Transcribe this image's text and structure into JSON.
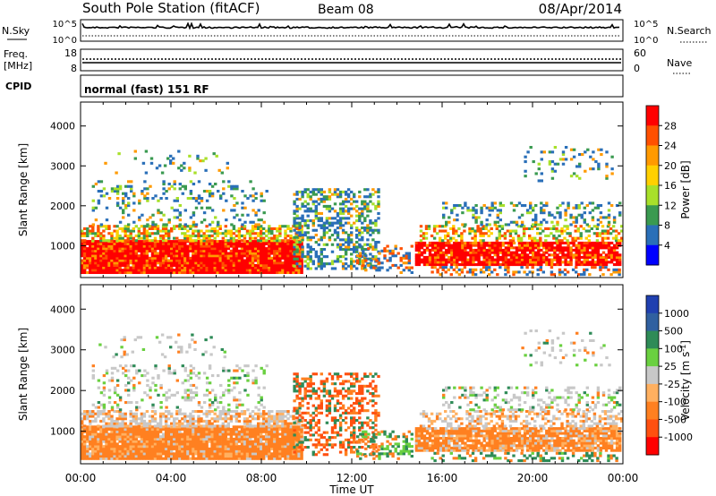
{
  "header": {
    "station": "South Pole Station (fitACF)",
    "beam": "Beam 08",
    "date": "08/Apr/2014"
  },
  "params": {
    "nsky_label": "N.Sky",
    "nsearch_label": "N.Search",
    "nsky_top_tick": "10^5",
    "nsky_bottom_tick": "10^0",
    "freq_label": "Freq.",
    "freq_unit": "[MHz]",
    "freq_ticks": [
      "18",
      "8"
    ],
    "nave_label": "Nave",
    "nave_ticks": [
      "60",
      "0"
    ],
    "cpid_label": "CPID",
    "cpid_value": "normal (fast) 151 RF"
  },
  "chart_data": [
    {
      "type": "heatmap",
      "name": "power",
      "ylabel": "Slant Range [km]",
      "xlabel": "Time UT",
      "x_ticks": [
        "00:00",
        "04:00",
        "08:00",
        "12:00",
        "16:00",
        "20:00",
        "00:00"
      ],
      "y_ticks": [
        1000,
        2000,
        3000,
        4000
      ],
      "ylim": [
        200,
        4600
      ],
      "xlim_hours": [
        0,
        24
      ],
      "colorbar": {
        "label": "Power [dB]",
        "ticks": [
          "28",
          "24",
          "20",
          "16",
          "12",
          "8",
          "4"
        ],
        "colors": [
          "#ff0000",
          "#ff5000",
          "#ff9a00",
          "#ffd000",
          "#a8e02a",
          "#3a9a50",
          "#2a6fb8",
          "#0000ff"
        ]
      }
    },
    {
      "type": "heatmap",
      "name": "velocity",
      "ylabel": "Slant Range [km]",
      "xlabel": "Time UT",
      "x_ticks": [
        "00:00",
        "04:00",
        "08:00",
        "12:00",
        "16:00",
        "20:00",
        "00:00"
      ],
      "y_ticks": [
        1000,
        2000,
        3000,
        4000
      ],
      "ylim": [
        200,
        4600
      ],
      "xlim_hours": [
        0,
        24
      ],
      "colorbar": {
        "label": "Velocity [m s",
        "label_sup": "-1",
        "label_close": "]",
        "ticks": [
          "1000",
          "500",
          "100",
          "25",
          "-25",
          "-100",
          "-500",
          "-1000"
        ],
        "colors": [
          "#2040b0",
          "#3060a0",
          "#2e8b57",
          "#6ad040",
          "#c8c8c8",
          "#ffb060",
          "#ff8020",
          "#ff5010",
          "#ff0000"
        ]
      }
    }
  ]
}
